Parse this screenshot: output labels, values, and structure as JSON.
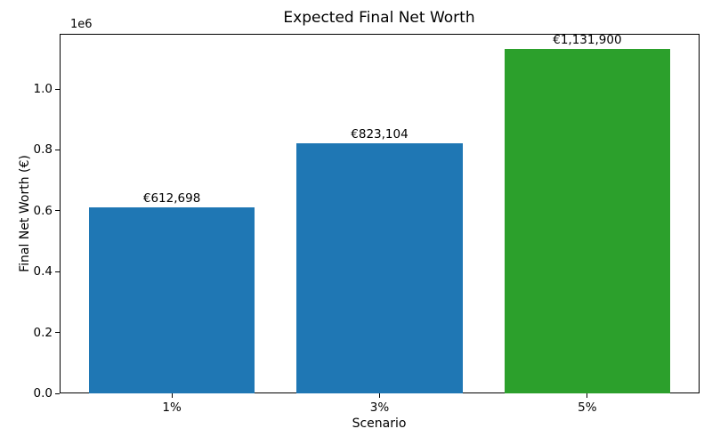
{
  "figure_title": "Expected Final Net Worth",
  "chart_data": {
    "type": "bar",
    "title": "Expected Final Net Worth",
    "xlabel": "Scenario",
    "ylabel": "Final Net Worth (€)",
    "categories": [
      "1%",
      "3%",
      "5%"
    ],
    "values": [
      612698,
      823104,
      1131900
    ],
    "bar_labels": [
      "€612,698",
      "€823,104",
      "€1,131,900"
    ],
    "bar_colors": [
      "#1f77b4",
      "#1f77b4",
      "#2ca02c"
    ],
    "bar_width_fraction": 0.8,
    "y_axis": {
      "offset_label": "1e6",
      "tick_values": [
        0.0,
        0.2,
        0.4,
        0.6,
        0.8,
        1.0
      ],
      "tick_labels": [
        "0.0",
        "0.2",
        "0.4",
        "0.6",
        "0.8",
        "1.0"
      ],
      "ylim": [
        0,
        1181290
      ]
    },
    "x_axis": {
      "tick_labels": [
        "1%",
        "3%",
        "5%"
      ]
    },
    "grid": false,
    "legend": null,
    "background_color": "#ffffff",
    "text_color": "#000000"
  }
}
